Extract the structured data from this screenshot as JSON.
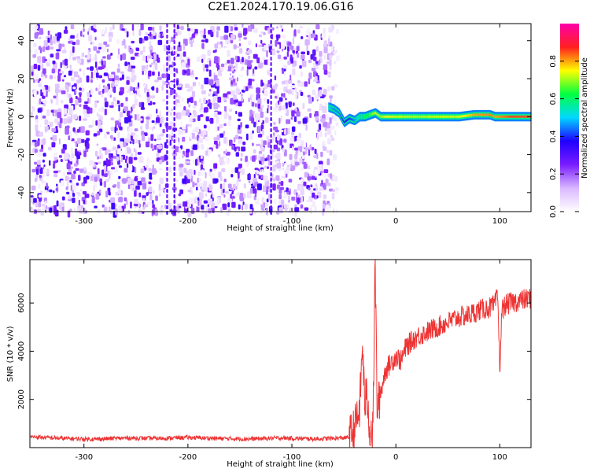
{
  "title": "C2E1.2024.170.19.06.G16",
  "colors": {
    "snr_line": "#ee3333",
    "spectrogram_noise": "#6a00ee",
    "colormap": [
      "#ffffff",
      "#d9b8ff",
      "#7a1cff",
      "#1f00ff",
      "#00d8ff",
      "#00ff40",
      "#ffff00",
      "#ff2020",
      "#ff00aa"
    ]
  },
  "chart_data": [
    {
      "type": "heatmap",
      "title": "C2E1.2024.170.19.06.G16",
      "xlabel": "Height of straight line (km)",
      "ylabel": "Frequency (Hz)",
      "xlim": [
        -352,
        130
      ],
      "ylim": [
        -50,
        49
      ],
      "xticks": [
        -300,
        -200,
        -100,
        0,
        100
      ],
      "yticks": [
        -40,
        -20,
        0,
        20,
        40
      ],
      "colorbar": {
        "label": "Normalized spectral amplitude",
        "range": [
          0.0,
          1.0
        ],
        "ticks": [
          0.0,
          0.2,
          0.4,
          0.6,
          0.8
        ]
      },
      "features": {
        "noise_region_x": [
          -352,
          -65
        ],
        "signal_track": {
          "x": [
            -65,
            -60,
            -55,
            -50,
            -45,
            -40,
            -35,
            -30,
            -25,
            -20,
            -15,
            -10,
            0,
            20,
            40,
            60,
            75,
            90,
            95,
            110,
            130
          ],
          "freq": [
            5,
            4,
            2,
            -3,
            -1,
            -2,
            0,
            0,
            1,
            2,
            0,
            0,
            0,
            0,
            0,
            0,
            1,
            1,
            0,
            0,
            0
          ],
          "amplitude": [
            0.5,
            0.45,
            0.45,
            0.35,
            0.4,
            0.45,
            0.55,
            0.6,
            0.65,
            0.75,
            0.7,
            0.75,
            0.72,
            0.7,
            0.72,
            0.72,
            0.8,
            0.82,
            0.8,
            0.85,
            0.85
          ]
        },
        "vertical_streaks_x": [
          -220,
          -213,
          -120
        ]
      }
    },
    {
      "type": "line",
      "xlabel": "Height of straight line (km)",
      "ylabel": "SNR (10 * v/v)",
      "xlim": [
        -352,
        130
      ],
      "ylim": [
        0,
        7800
      ],
      "xticks": [
        -300,
        -200,
        -100,
        0,
        100
      ],
      "yticks": [
        2000,
        4000,
        6000
      ],
      "series": [
        {
          "x": [
            -352,
            -320,
            -290,
            -260,
            -230,
            -200,
            -170,
            -140,
            -110,
            -80,
            -60,
            -45,
            -40,
            -35,
            -32,
            -30,
            -28,
            -25,
            -22,
            -20,
            -19,
            -18,
            -15,
            -10,
            -5,
            0,
            5,
            10,
            20,
            30,
            40,
            50,
            60,
            70,
            80,
            90,
            95,
            98,
            100,
            102,
            105,
            110,
            120,
            130
          ],
          "y": [
            450,
            380,
            350,
            400,
            380,
            420,
            380,
            360,
            400,
            360,
            380,
            420,
            800,
            1500,
            4300,
            1800,
            2200,
            800,
            600,
            7700,
            5000,
            1500,
            2200,
            3200,
            3500,
            3800,
            3600,
            4200,
            4600,
            4800,
            5000,
            5200,
            5400,
            5500,
            5700,
            5800,
            5900,
            6300,
            3300,
            5700,
            5900,
            6000,
            6100,
            6200
          ]
        }
      ]
    }
  ]
}
